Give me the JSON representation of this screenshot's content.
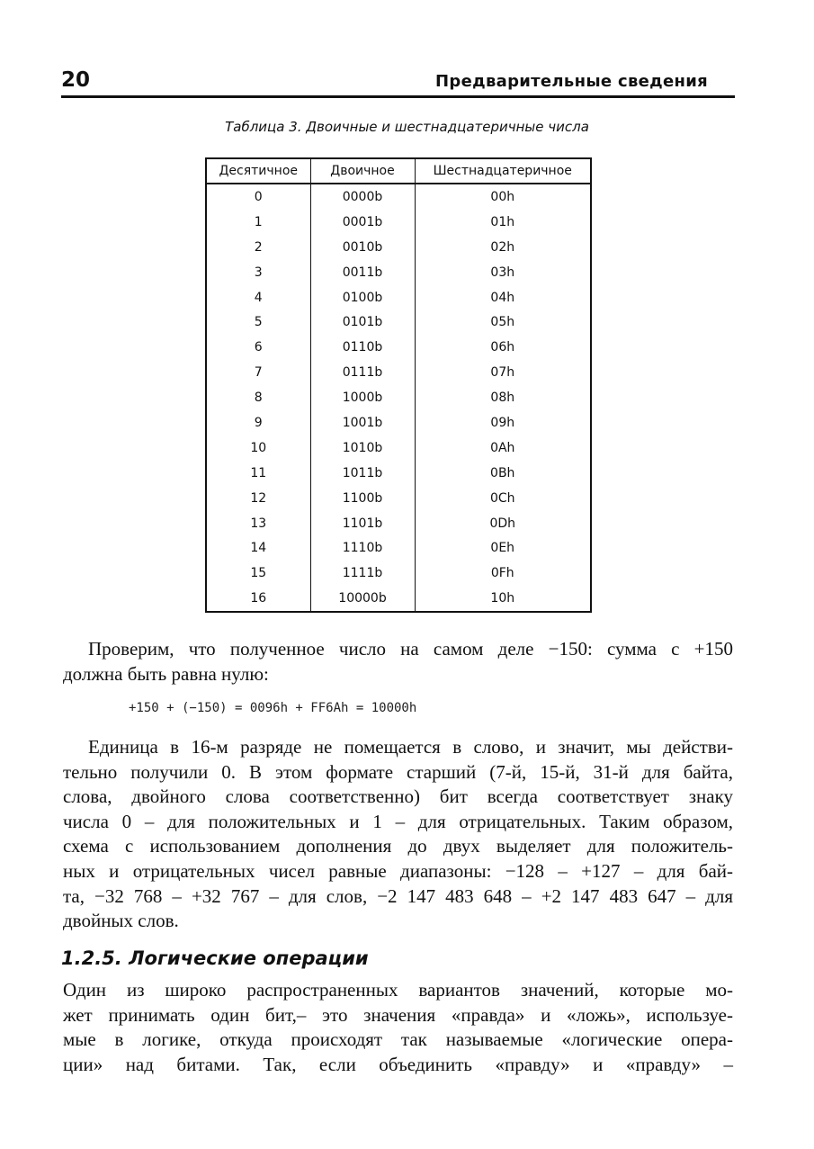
{
  "header": {
    "page_number": "20",
    "running_title": "Предварительные сведения"
  },
  "table": {
    "caption": "Таблица 3. Двоичные и шестнадцатеричные числа",
    "columns": [
      "Десятичное",
      "Двоичное",
      "Шестнадцатеричное"
    ],
    "rows": [
      [
        "0",
        "0000b",
        "00h"
      ],
      [
        "1",
        "0001b",
        "01h"
      ],
      [
        "2",
        "0010b",
        "02h"
      ],
      [
        "3",
        "0011b",
        "03h"
      ],
      [
        "4",
        "0100b",
        "04h"
      ],
      [
        "5",
        "0101b",
        "05h"
      ],
      [
        "6",
        "0110b",
        "06h"
      ],
      [
        "7",
        "0111b",
        "07h"
      ],
      [
        "8",
        "1000b",
        "08h"
      ],
      [
        "9",
        "1001b",
        "09h"
      ],
      [
        "10",
        "1010b",
        "0Ah"
      ],
      [
        "11",
        "1011b",
        "0Bh"
      ],
      [
        "12",
        "1100b",
        "0Ch"
      ],
      [
        "13",
        "1101b",
        "0Dh"
      ],
      [
        "14",
        "1110b",
        "0Eh"
      ],
      [
        "15",
        "1111b",
        "0Fh"
      ],
      [
        "16",
        "10000b",
        "10h"
      ]
    ]
  },
  "para1": [
    "Проверим, что полученное число на самом деле −150: сумма с +150",
    "должна быть равна нулю:"
  ],
  "code": "+150 + (−150) = 0096h + FF6Ah = 10000h",
  "para2": [
    "Единица в 16-м разряде не помещается в слово, и значит, мы действи-",
    "тельно получили 0. В этом формате старший (7-й, 15-й, 31-й для байта,",
    "слова, двойного слова соответственно) бит всегда соответствует знаку",
    "числа 0 – для положительных и 1 – для отрицательных. Таким образом,",
    "схема с использованием дополнения до двух выделяет для положитель-",
    "ных и отрицательных чисел равные диапазоны: −128 – +127 – для бай-",
    "та, −32 768 – +32 767 – для слов, −2 147 483 648 – +2 147 483 647 – для",
    "двойных слов."
  ],
  "section_heading": "1.2.5. Логические операции",
  "para3": [
    "Один из широко распространенных вариантов значений, которые мо-",
    "жет принимать один бит,– это значения «правда» и «ложь», используе-",
    "мые в логике, откуда происходят так называемые «логические опера-",
    "ции» над битами. Так, если объединить «правду» и «правду» –"
  ]
}
